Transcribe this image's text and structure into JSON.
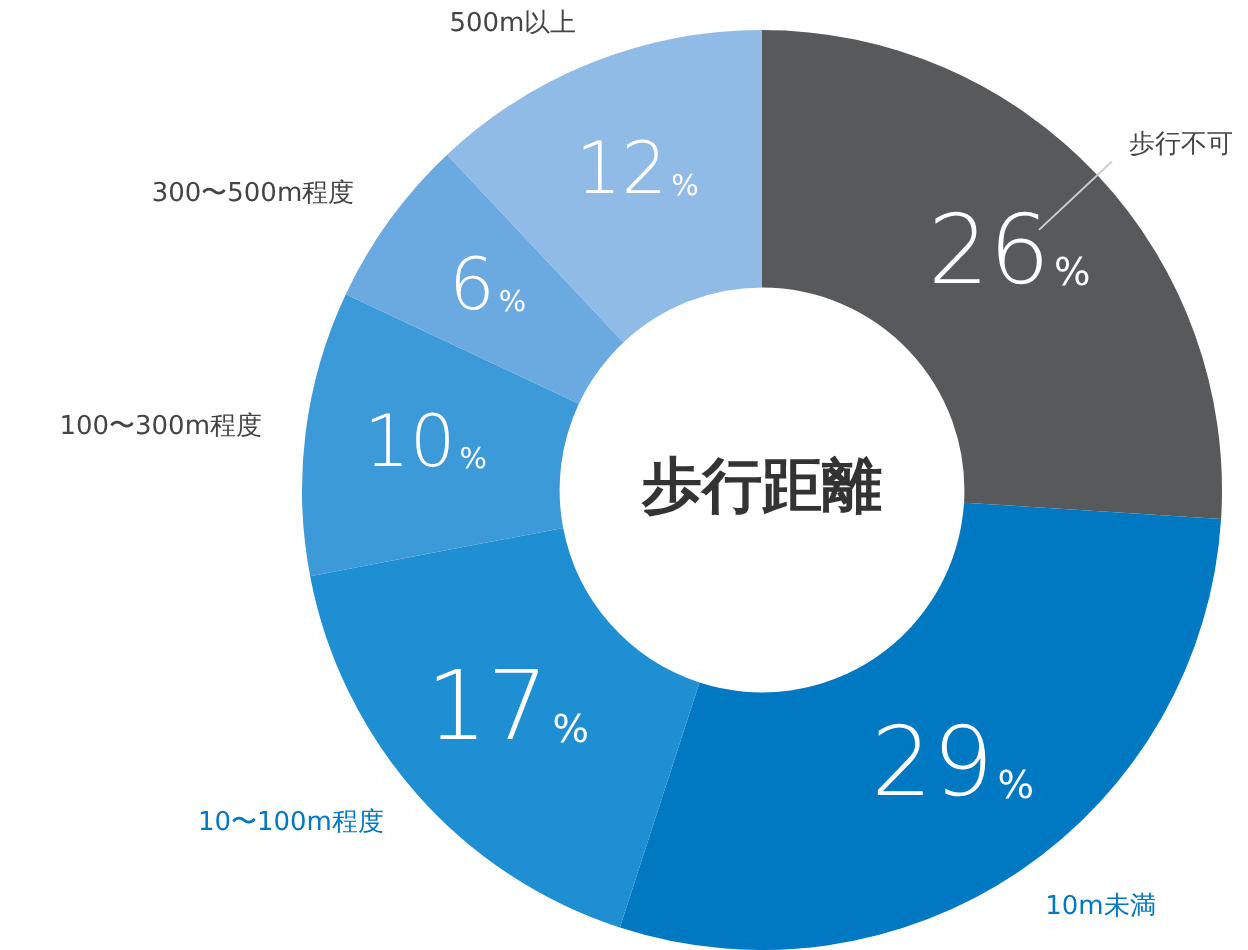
{
  "chart_data": {
    "type": "donut",
    "title": "歩行距離",
    "categories": [
      "歩行不可",
      "10m未満",
      "10〜100m程度",
      "100〜300m程度",
      "300〜500m程度",
      "500m以上"
    ],
    "values": [
      26,
      29,
      17,
      10,
      6,
      12
    ],
    "colors": [
      "#58595b",
      "#0079c2",
      "#1e8fd3",
      "#3d9ad8",
      "#6aaae0",
      "#8fbbe6"
    ],
    "value_labels": [
      "26%",
      "29%",
      "17%",
      "10%",
      "6%",
      "12%"
    ],
    "legend": false
  }
}
